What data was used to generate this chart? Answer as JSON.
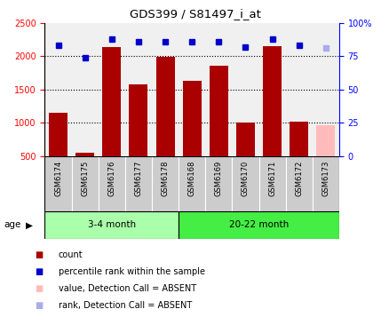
{
  "title": "GDS399 / S81497_i_at",
  "samples": [
    "GSM6174",
    "GSM6175",
    "GSM6176",
    "GSM6177",
    "GSM6178",
    "GSM6168",
    "GSM6169",
    "GSM6170",
    "GSM6171",
    "GSM6172",
    "GSM6173"
  ],
  "counts": [
    1150,
    550,
    2130,
    1580,
    1990,
    1630,
    1855,
    1005,
    2155,
    1010,
    960
  ],
  "ranks": [
    83,
    74,
    88,
    86,
    86,
    86,
    86,
    82,
    88,
    83,
    81
  ],
  "absent_flags": [
    false,
    false,
    false,
    false,
    false,
    false,
    false,
    false,
    false,
    false,
    true
  ],
  "rank_absent_flags": [
    false,
    false,
    false,
    false,
    false,
    false,
    false,
    false,
    false,
    false,
    true
  ],
  "group1_label": "3-4 month",
  "group1_indices": [
    0,
    1,
    2,
    3,
    4
  ],
  "group2_label": "20-22 month",
  "group2_indices": [
    5,
    6,
    7,
    8,
    9,
    10
  ],
  "age_label": "age",
  "bar_color_present": "#aa0000",
  "bar_color_absent": "#ffbbbb",
  "rank_color_present": "#0000cc",
  "rank_color_absent": "#aaaaee",
  "group1_bg": "#aaffaa",
  "group2_bg": "#44ee44",
  "sample_bg": "#cccccc",
  "plot_bg": "#f0f0f0",
  "ylim_left": [
    500,
    2500
  ],
  "ylim_right": [
    0,
    100
  ],
  "yticks_left": [
    500,
    1000,
    1500,
    2000,
    2500
  ],
  "yticks_right": [
    0,
    25,
    50,
    75,
    100
  ],
  "ytick_right_labels": [
    "0",
    "25",
    "50",
    "75",
    "100%"
  ],
  "grid_lines": [
    1000,
    1500,
    2000
  ],
  "legend_items": [
    {
      "label": "count",
      "color": "#aa0000"
    },
    {
      "label": "percentile rank within the sample",
      "color": "#0000cc"
    },
    {
      "label": "value, Detection Call = ABSENT",
      "color": "#ffbbbb"
    },
    {
      "label": "rank, Detection Call = ABSENT",
      "color": "#aaaaee"
    }
  ]
}
